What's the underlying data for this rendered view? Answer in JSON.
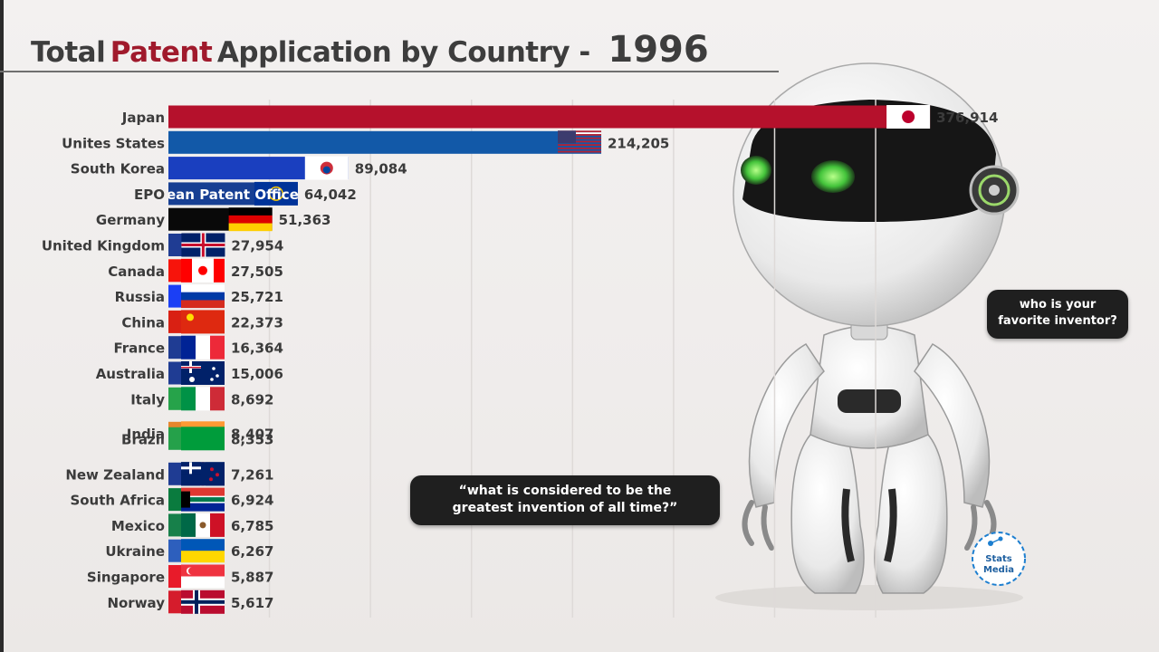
{
  "title": {
    "prefix": "Total",
    "accent": "Patent",
    "suffix": "Application by Country -",
    "year": "1996"
  },
  "bubbles": {
    "right_line1": "who is your",
    "right_line2": "favorite inventor?",
    "bottom_line1": "“what is considered to be the",
    "bottom_line2": "greatest invention of all time?”"
  },
  "logo": {
    "line1": "Stats",
    "line2": "Media"
  },
  "colors": {
    "accent": "#a01a2c",
    "title": "#3d3d3d"
  },
  "chart_data": {
    "type": "bar",
    "orientation": "horizontal",
    "title": "Total Patent Application by Country - 1996",
    "xlim": [
      0,
      380000
    ],
    "grid": true,
    "overlap_label": "EPOean Patent Office",
    "categories": [
      "Japan",
      "Unites States",
      "South Korea",
      "EPO",
      "Germany",
      "United Kingdom",
      "Canada",
      "Russia",
      "China",
      "France",
      "Australia",
      "Italy",
      "India",
      "Brazil",
      "New Zealand",
      "South Africa",
      "Mexico",
      "Ukraine",
      "Singapore",
      "Norway"
    ],
    "value_labels": [
      "376,914",
      "214,205",
      "89,084",
      "64,042",
      "51,363",
      "27,954",
      "27,505",
      "25,721",
      "22,373",
      "16,364",
      "15,006",
      "8,692",
      "8,407",
      "8,353",
      "7,261",
      "6,924",
      "6,785",
      "6,267",
      "5,887",
      "5,617"
    ],
    "values": [
      376914,
      214205,
      89084,
      64042,
      51363,
      27954,
      27505,
      25721,
      22373,
      16364,
      15006,
      8692,
      8407,
      8353,
      7261,
      6924,
      6785,
      6267,
      5887,
      5617
    ],
    "bar_colors": [
      "#b5112c",
      "#1259a8",
      "#1a3fbf",
      "#173f93",
      "#090909",
      "#1f3c93",
      "#f7140b",
      "#1b3ff5",
      "#d92013",
      "#1f3c93",
      "#1f3c93",
      "#26a34a",
      "#e6852c",
      "#25a14a",
      "#1f3c93",
      "#0a7b3e",
      "#17804a",
      "#2d5fbd",
      "#e81b2a",
      "#d51c2c"
    ]
  }
}
